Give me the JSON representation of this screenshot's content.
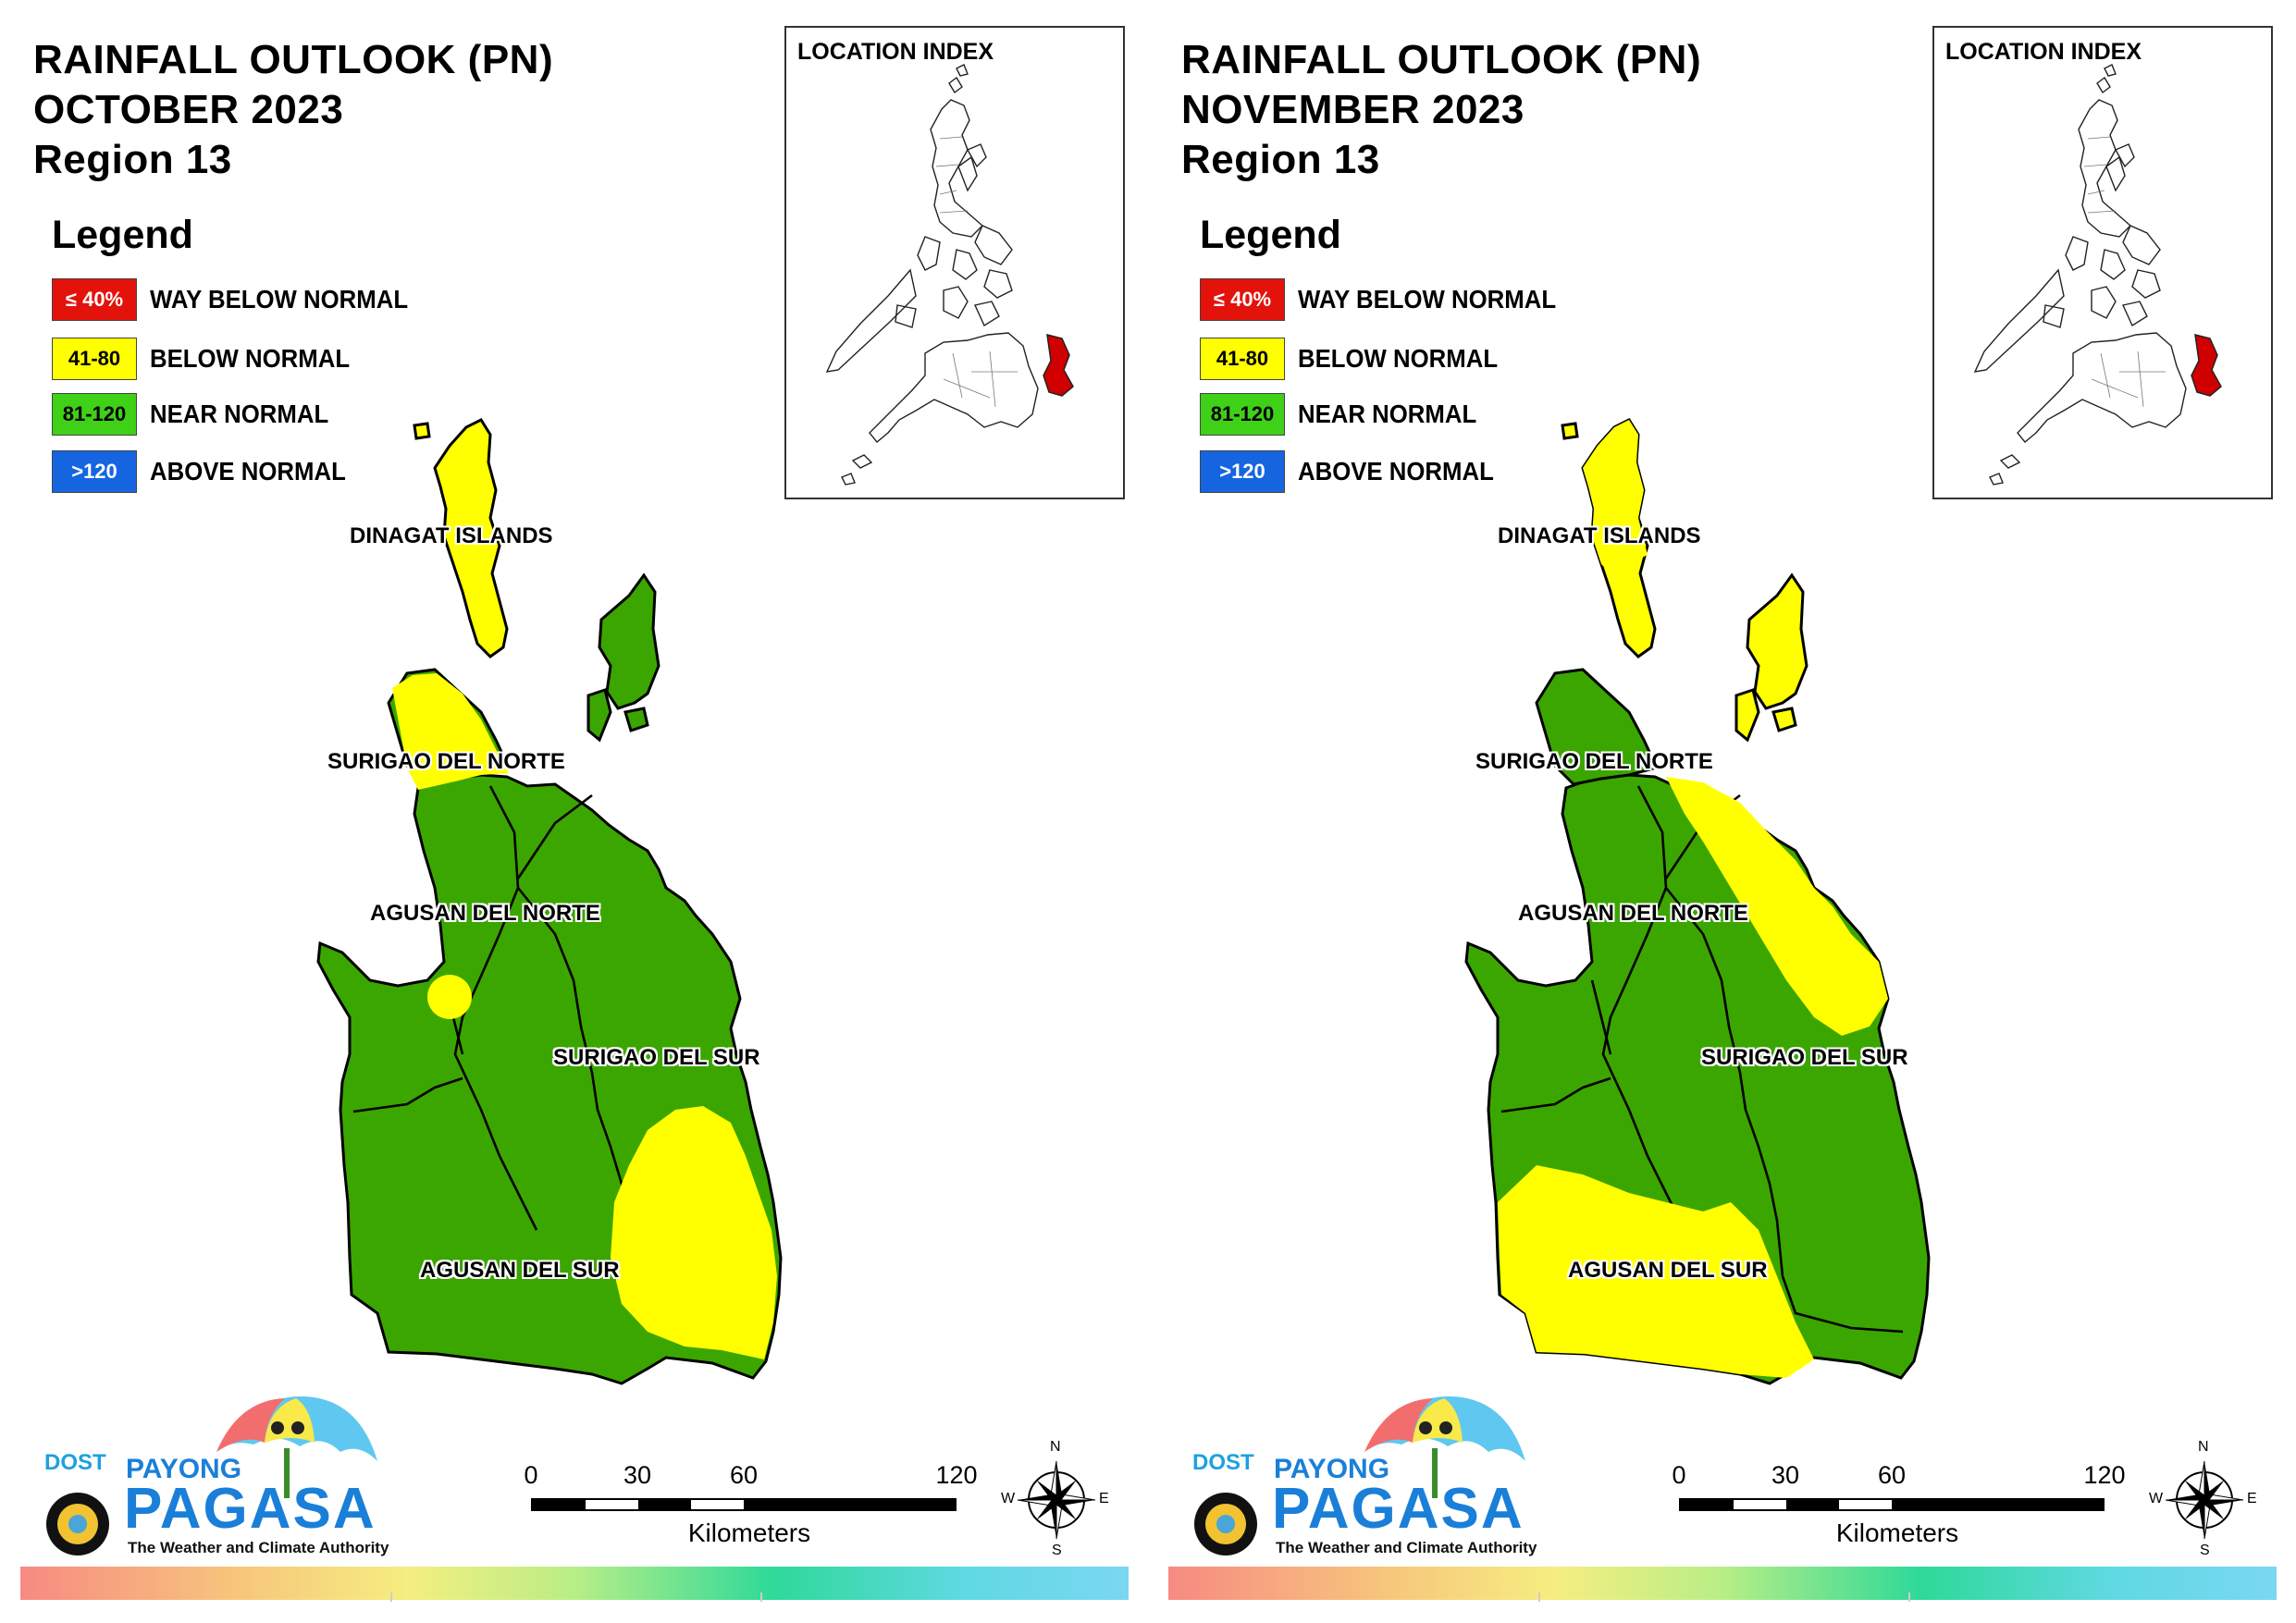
{
  "panels": [
    {
      "title_line1": "RAINFALL OUTLOOK (PN)",
      "title_line2": "OCTOBER 2023",
      "title_line3": "Region 13",
      "legend_title": "Legend",
      "legend": [
        {
          "code": "≤ 40%",
          "label": "WAY BELOW NORMAL",
          "color": "#e3120b",
          "text_color": "#ffffff"
        },
        {
          "code": "41-80",
          "label": "BELOW NORMAL",
          "color": "#ffff00",
          "text_color": "#000000"
        },
        {
          "code": "81-120",
          "label": "NEAR NORMAL",
          "color": "#3fd018",
          "text_color": "#000000"
        },
        {
          "code": ">120",
          "label": "ABOVE NORMAL",
          "color": "#1565e0",
          "text_color": "#ffffff"
        }
      ],
      "location_index_label": "LOCATION INDEX",
      "provinces": {
        "dinagat": "DINAGAT ISLANDS",
        "sdn": "SURIGAO DEL NORTE",
        "adn": "AGUSAN DEL NORTE",
        "sds": "SURIGAO DEL SUR",
        "ads": "AGUSAN DEL SUR"
      },
      "province_outlook": {
        "dinagat": "BELOW NORMAL",
        "siargao": "NEAR NORMAL",
        "surigao_del_norte": "NEAR NORMAL",
        "agusan_del_norte": "NEAR NORMAL",
        "surigao_del_sur": "NEAR NORMAL",
        "agusan_del_sur": "NEAR NORMAL"
      },
      "scale": {
        "ticks": [
          "0",
          "30",
          "60",
          "120"
        ],
        "unit": "Kilometers"
      },
      "compass": {
        "n": "N",
        "e": "E",
        "s": "S",
        "w": "W"
      },
      "logo": {
        "dost": "DOST",
        "payong": "PAYONG",
        "pagasa": "PAGASA",
        "tagline": "The Weather and Climate Authority"
      }
    },
    {
      "title_line1": "RAINFALL OUTLOOK (PN)",
      "title_line2": "NOVEMBER 2023",
      "title_line3": "Region 13",
      "legend_title": "Legend",
      "legend": [
        {
          "code": "≤ 40%",
          "label": "WAY BELOW NORMAL",
          "color": "#e3120b",
          "text_color": "#ffffff"
        },
        {
          "code": "41-80",
          "label": "BELOW NORMAL",
          "color": "#ffff00",
          "text_color": "#000000"
        },
        {
          "code": "81-120",
          "label": "NEAR NORMAL",
          "color": "#3fd018",
          "text_color": "#000000"
        },
        {
          "code": ">120",
          "label": "ABOVE NORMAL",
          "color": "#1565e0",
          "text_color": "#ffffff"
        }
      ],
      "location_index_label": "LOCATION INDEX",
      "provinces": {
        "dinagat": "DINAGAT ISLANDS",
        "sdn": "SURIGAO DEL NORTE",
        "adn": "AGUSAN DEL NORTE",
        "sds": "SURIGAO DEL SUR",
        "ads": "AGUSAN DEL SUR"
      },
      "province_outlook": {
        "dinagat": "BELOW NORMAL",
        "siargao": "BELOW NORMAL",
        "surigao_del_norte": "NEAR NORMAL",
        "agusan_del_norte": "NEAR NORMAL",
        "surigao_del_sur": "NEAR NORMAL",
        "agusan_del_sur": "BELOW NORMAL"
      },
      "scale": {
        "ticks": [
          "0",
          "30",
          "60",
          "120"
        ],
        "unit": "Kilometers"
      },
      "compass": {
        "n": "N",
        "e": "E",
        "s": "S",
        "w": "W"
      },
      "logo": {
        "dost": "DOST",
        "payong": "PAYONG",
        "pagasa": "PAGASA",
        "tagline": "The Weather and Climate Authority"
      }
    }
  ],
  "colors": {
    "map_green": "#3ba600",
    "map_yellow": "#ffff00",
    "highlight_red": "#d10000"
  }
}
